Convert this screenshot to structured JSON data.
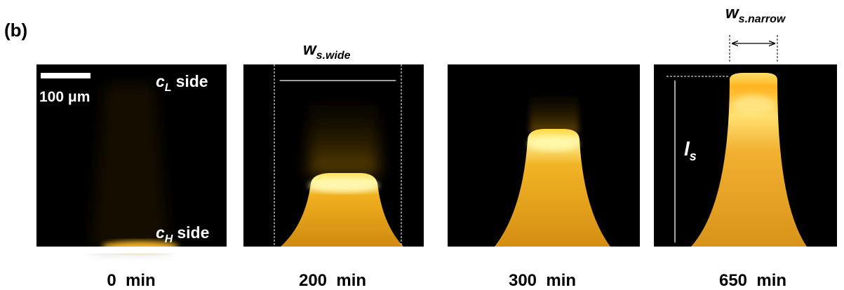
{
  "panel_label": "(b)",
  "scale_bar": "100 μm",
  "side_low": {
    "base": "c",
    "sub": "L",
    "suffix": "side"
  },
  "side_high": {
    "base": "c",
    "sub": "H",
    "suffix": "side"
  },
  "width_wide": {
    "base": "w",
    "sub": "s.wide"
  },
  "width_narrow": {
    "base": "w",
    "sub": "s.narrow"
  },
  "length": {
    "base": "l",
    "sub": "s"
  },
  "panels": [
    {
      "time": "0  min"
    },
    {
      "time": "200  min"
    },
    {
      "time": "300  min"
    },
    {
      "time": "650  min"
    }
  ]
}
